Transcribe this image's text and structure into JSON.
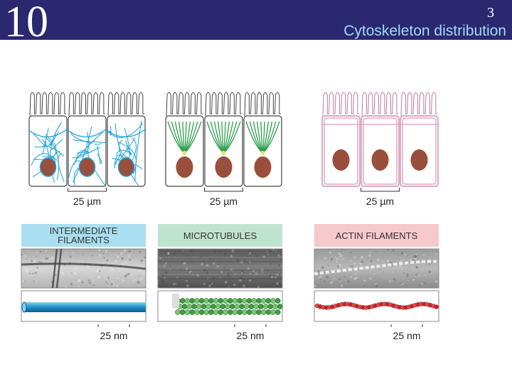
{
  "header": {
    "number": "10",
    "page": "3",
    "title": "Cytoskeleton distribution"
  },
  "panels": [
    {
      "cell_scale": "25 µm",
      "label": [
        "INTERMEDIATE",
        "FILAMENTS"
      ],
      "filament_scale": "25 nm"
    },
    {
      "cell_scale": "25 µm",
      "label": [
        "MICROTUBULES"
      ],
      "filament_scale": "25 nm"
    },
    {
      "cell_scale": "25 µm",
      "label": [
        "ACTIN FILAMENTS"
      ],
      "filament_scale": "25 nm"
    }
  ]
}
